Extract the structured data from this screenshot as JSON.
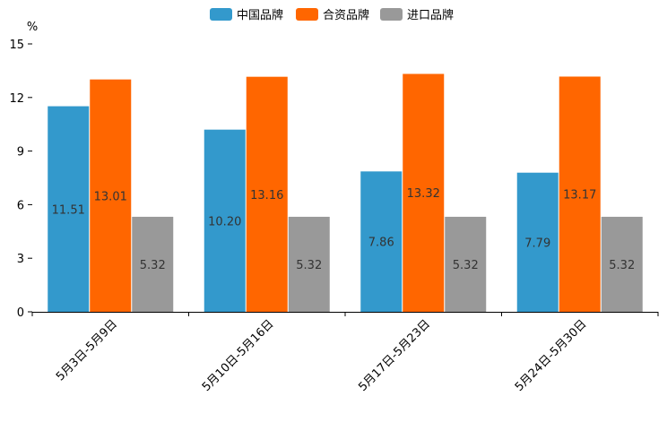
{
  "chart_data": {
    "type": "bar",
    "title": "",
    "xlabel": "",
    "ylabel": "%",
    "ylim": [
      0,
      15
    ],
    "yticks": [
      "0",
      "3",
      "6",
      "9",
      "12",
      "15"
    ],
    "categories": [
      "5月3日-5月9日",
      "5月10日-5月16日",
      "5月17日-5月23日",
      "5月24日-5月30日"
    ],
    "series": [
      {
        "name": "中国品牌",
        "color": "#3399cc",
        "values": [
          11.51,
          10.2,
          7.86,
          7.79
        ],
        "labels": [
          "11.51",
          "10.20",
          "7.86",
          "7.79"
        ]
      },
      {
        "name": "合资品牌",
        "color": "#ff6600",
        "values": [
          13.01,
          13.16,
          13.32,
          13.17
        ],
        "labels": [
          "13.01",
          "13.16",
          "13.32",
          "13.17"
        ]
      },
      {
        "name": "进口品牌",
        "color": "#999999",
        "values": [
          5.32,
          5.32,
          5.32,
          5.32
        ],
        "labels": [
          "5.32",
          "5.32",
          "5.32",
          "5.32"
        ]
      }
    ],
    "legend": "top-center",
    "grid": false
  }
}
